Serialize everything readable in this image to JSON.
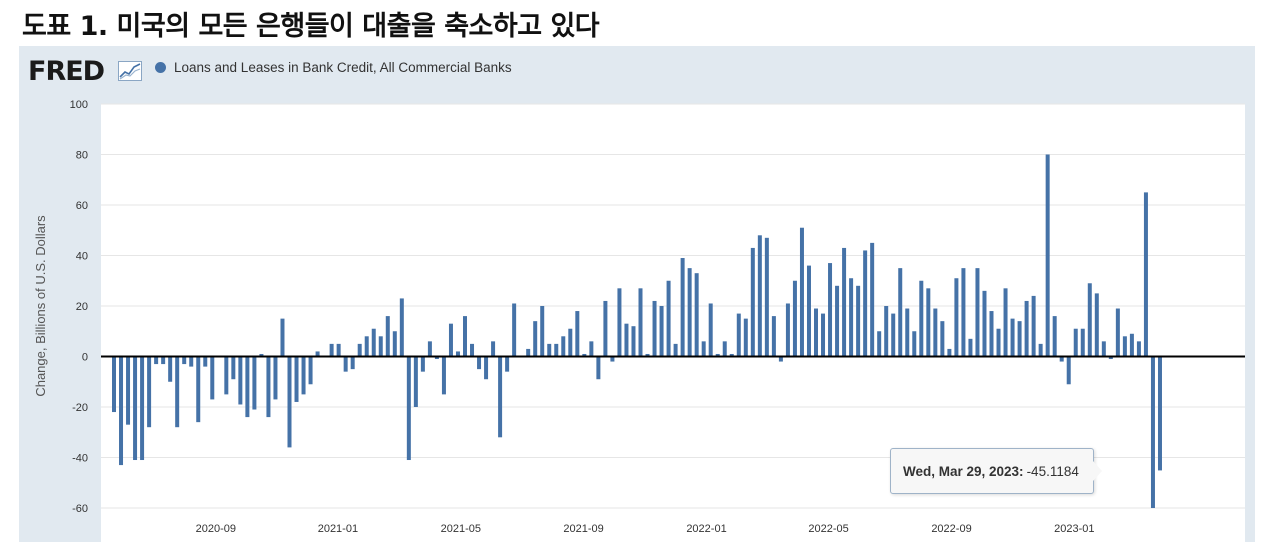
{
  "heading": "도표 1. 미국의 모든 은행들이 대출을 축소하고 있다",
  "logo": "FRED",
  "logo_icon": "fred-graph-icon",
  "colors": {
    "series": "#4572a7",
    "plot_bg": "#ffffff",
    "frame_bg": "#e1e9f0",
    "grid": "#e6e6e6",
    "zero_line": "#000000"
  },
  "chart_data": {
    "type": "bar",
    "title": "",
    "xlabel": "",
    "ylabel": "Change, Billions of U.S. Dollars",
    "ylim": [
      -60,
      100
    ],
    "yticks": [
      100,
      80,
      60,
      40,
      20,
      0,
      -20,
      -40,
      -60
    ],
    "xticks": [
      {
        "label": "2020-09",
        "week": 14.5
      },
      {
        "label": "2021-01",
        "week": 31.9
      },
      {
        "label": "2021-05",
        "week": 49.4
      },
      {
        "label": "2021-09",
        "week": 66.9
      },
      {
        "label": "2022-01",
        "week": 84.4
      },
      {
        "label": "2022-05",
        "week": 101.8
      },
      {
        "label": "2022-09",
        "week": 119.3
      },
      {
        "label": "2023-01",
        "week": 136.8
      }
    ],
    "series": [
      {
        "name": "Loans and Leases in Bank Credit, All Commercial Banks",
        "start_date": "2020-06-10",
        "interval": "weekly",
        "values": [
          -22,
          -43,
          -27,
          -41,
          -41,
          -28,
          -3,
          -3,
          -10,
          -28,
          -3,
          -4,
          -26,
          -4,
          -17,
          0,
          -15,
          -9,
          -19,
          -24,
          -21,
          1,
          -24,
          -17,
          15,
          -36,
          -18,
          -15,
          -11,
          2,
          0,
          5,
          5,
          -6,
          -5,
          5,
          8,
          11,
          8,
          16,
          10,
          23,
          -41,
          -20,
          -6,
          6,
          -1,
          -15,
          13,
          2,
          16,
          5,
          -5,
          -9,
          6,
          -32,
          -6,
          21,
          0,
          3,
          14,
          20,
          5,
          5,
          8,
          11,
          18,
          1,
          6,
          -9,
          22,
          -2,
          27,
          13,
          12,
          27,
          1,
          22,
          20,
          30,
          5,
          39,
          35,
          33,
          6,
          21,
          1,
          6,
          1,
          17,
          15,
          43,
          48,
          47,
          16,
          -2,
          21,
          30,
          51,
          36,
          19,
          17,
          37,
          28,
          43,
          31,
          28,
          42,
          45,
          10,
          20,
          17,
          35,
          19,
          10,
          30,
          27,
          19,
          14,
          3,
          31,
          35,
          7,
          35,
          26,
          18,
          11,
          27,
          15,
          14,
          22,
          24,
          5,
          80,
          16,
          -2,
          -11,
          11,
          11,
          29,
          25,
          6,
          -1,
          19,
          8,
          9,
          6,
          65,
          -60,
          -45.1184
        ]
      }
    ]
  },
  "tooltip": {
    "date": "Wed, Mar 29, 2023:",
    "value": "-45.1184"
  }
}
